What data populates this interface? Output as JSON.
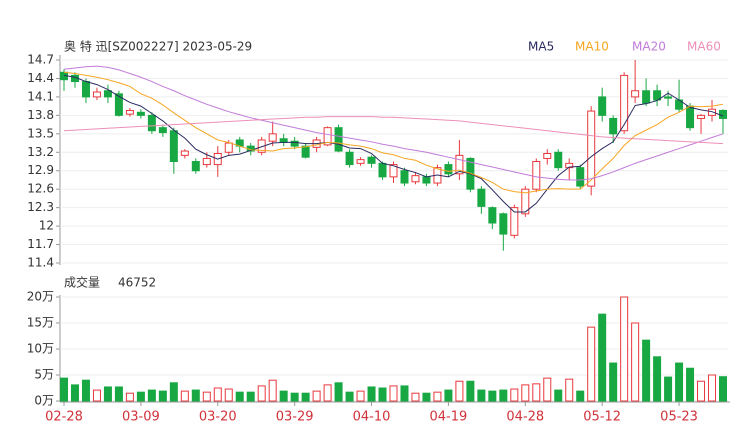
{
  "chart_data": [
    {
      "type": "candlestick",
      "title": "奥 特 迅[SZ002227] 2023-05-29",
      "up_color": "#e8383d",
      "down_color": "#18a843",
      "open": [
        14.5,
        14.45,
        14.35,
        14.1,
        14.2,
        14.15,
        13.82,
        13.85,
        13.8,
        13.6,
        13.55,
        13.15,
        13.05,
        13.0,
        13.0,
        13.2,
        13.4,
        13.3,
        13.2,
        13.38,
        13.42,
        13.38,
        13.3,
        13.28,
        13.32,
        13.6,
        13.2,
        13.02,
        13.12,
        13.02,
        12.8,
        12.9,
        12.72,
        12.8,
        12.7,
        13.0,
        12.85,
        13.1,
        12.6,
        12.3,
        12.2,
        11.85,
        12.2,
        12.6,
        13.1,
        13.2,
        12.95,
        12.95,
        12.65,
        14.1,
        13.75,
        13.55,
        14.1,
        14.2,
        14.2,
        14.1,
        14.05,
        13.95,
        13.75,
        13.8,
        13.88
      ],
      "high": [
        14.55,
        14.5,
        14.4,
        14.25,
        14.3,
        14.2,
        13.92,
        13.9,
        13.85,
        13.65,
        13.6,
        13.25,
        13.1,
        13.2,
        13.3,
        13.4,
        13.45,
        13.35,
        13.45,
        13.7,
        13.5,
        13.45,
        13.35,
        13.45,
        13.62,
        13.65,
        13.25,
        13.12,
        13.15,
        13.05,
        13.05,
        12.95,
        12.88,
        12.85,
        13.0,
        13.05,
        13.4,
        13.12,
        12.65,
        12.32,
        12.22,
        12.35,
        12.65,
        13.1,
        13.25,
        13.25,
        13.1,
        13.0,
        13.95,
        14.25,
        13.8,
        14.5,
        14.7,
        14.4,
        14.3,
        14.2,
        14.38,
        14.0,
        13.82,
        14.05,
        13.9
      ],
      "low": [
        14.2,
        14.25,
        14.0,
        14.05,
        14.0,
        13.78,
        13.78,
        13.75,
        13.5,
        13.45,
        12.85,
        13.1,
        12.85,
        12.95,
        12.8,
        13.15,
        13.2,
        13.15,
        13.15,
        13.3,
        13.3,
        13.25,
        13.1,
        13.2,
        13.3,
        13.2,
        12.95,
        12.98,
        12.95,
        12.75,
        12.7,
        12.65,
        12.68,
        12.65,
        12.65,
        12.8,
        12.75,
        12.55,
        12.2,
        11.95,
        11.6,
        11.8,
        12.15,
        12.55,
        13.0,
        12.9,
        12.75,
        12.6,
        12.5,
        13.7,
        13.35,
        13.5,
        14.0,
        13.95,
        13.95,
        13.95,
        13.85,
        13.55,
        13.5,
        13.7,
        13.5
      ],
      "close": [
        14.38,
        14.35,
        14.1,
        14.18,
        14.1,
        13.8,
        13.88,
        13.8,
        13.55,
        13.52,
        13.05,
        13.22,
        12.9,
        13.1,
        13.18,
        13.35,
        13.3,
        13.22,
        13.4,
        13.5,
        13.36,
        13.3,
        13.12,
        13.4,
        13.6,
        13.22,
        13.0,
        13.08,
        13.02,
        12.8,
        13.0,
        12.7,
        12.82,
        12.7,
        12.95,
        12.85,
        13.15,
        12.6,
        12.32,
        12.05,
        11.87,
        12.3,
        12.6,
        13.05,
        13.18,
        12.95,
        13.02,
        12.65,
        13.87,
        13.8,
        13.5,
        14.45,
        14.2,
        14.0,
        14.05,
        14.08,
        13.9,
        13.6,
        13.8,
        13.9,
        13.75
      ],
      "series": [
        {
          "name": "MA5",
          "color": "#2b2b62",
          "values": [
            14.45,
            14.42,
            14.35,
            14.3,
            14.22,
            14.11,
            14.01,
            13.95,
            13.83,
            13.71,
            13.56,
            13.43,
            13.25,
            13.16,
            13.09,
            13.15,
            13.17,
            13.23,
            13.29,
            13.35,
            13.36,
            13.36,
            13.34,
            13.34,
            13.36,
            13.33,
            13.27,
            13.26,
            13.18,
            13.02,
            12.98,
            12.92,
            12.87,
            12.8,
            12.83,
            12.8,
            12.89,
            12.85,
            12.77,
            12.59,
            12.4,
            12.23,
            12.23,
            12.37,
            12.6,
            12.82,
            12.96,
            12.97,
            13.13,
            13.26,
            13.37,
            13.65,
            13.96,
            13.99,
            14.04,
            14.16,
            14.05,
            13.93,
            13.89,
            13.86,
            13.79
          ]
        },
        {
          "name": "MA10",
          "color": "#f5a623",
          "values": [
            14.5,
            14.48,
            14.45,
            14.42,
            14.38,
            14.33,
            14.27,
            14.15,
            14.08,
            13.97,
            13.84,
            13.72,
            13.6,
            13.5,
            13.4,
            13.36,
            13.3,
            13.24,
            13.23,
            13.22,
            13.26,
            13.27,
            13.29,
            13.32,
            13.36,
            13.35,
            13.32,
            13.3,
            13.26,
            13.19,
            13.16,
            13.1,
            13.07,
            12.99,
            12.93,
            12.89,
            12.91,
            12.86,
            12.79,
            12.71,
            12.6,
            12.56,
            12.54,
            12.57,
            12.6,
            12.61,
            12.6,
            12.6,
            12.75,
            12.93,
            13.1,
            13.31,
            13.47,
            13.56,
            13.65,
            13.77,
            13.85,
            13.95,
            13.94,
            13.95,
            13.98
          ]
        },
        {
          "name": "MA20",
          "color": "#c27bd8",
          "values": [
            14.55,
            14.57,
            14.59,
            14.6,
            14.58,
            14.54,
            14.48,
            14.42,
            14.35,
            14.27,
            14.2,
            14.12,
            14.05,
            13.98,
            13.92,
            13.86,
            13.81,
            13.76,
            13.72,
            13.68,
            13.64,
            13.6,
            13.56,
            13.52,
            13.49,
            13.46,
            13.43,
            13.4,
            13.37,
            13.33,
            13.3,
            13.26,
            13.23,
            13.2,
            13.16,
            13.12,
            13.08,
            13.04,
            13.0,
            12.96,
            12.92,
            12.88,
            12.84,
            12.8,
            12.78,
            12.76,
            12.75,
            12.75,
            12.77,
            12.82,
            12.88,
            12.95,
            13.02,
            13.08,
            13.14,
            13.2,
            13.26,
            13.32,
            13.38,
            13.44,
            13.5
          ]
        },
        {
          "name": "MA60",
          "color": "#ee8fb8",
          "values": [
            13.55,
            13.56,
            13.57,
            13.58,
            13.59,
            13.6,
            13.61,
            13.62,
            13.63,
            13.64,
            13.65,
            13.66,
            13.67,
            13.68,
            13.69,
            13.7,
            13.71,
            13.72,
            13.73,
            13.74,
            13.75,
            13.76,
            13.77,
            13.77,
            13.78,
            13.78,
            13.78,
            13.78,
            13.78,
            13.77,
            13.77,
            13.76,
            13.75,
            13.74,
            13.73,
            13.72,
            13.71,
            13.69,
            13.67,
            13.65,
            13.63,
            13.61,
            13.59,
            13.57,
            13.55,
            13.53,
            13.51,
            13.49,
            13.47,
            13.45,
            13.44,
            13.43,
            13.42,
            13.41,
            13.4,
            13.39,
            13.38,
            13.37,
            13.36,
            13.35,
            13.34
          ]
        }
      ],
      "ylim": [
        11.4,
        14.7
      ],
      "yticks": [
        14.7,
        14.4,
        14.1,
        13.8,
        13.5,
        13.2,
        12.9,
        12.6,
        12.3,
        12,
        11.7,
        11.4
      ]
    },
    {
      "type": "bar",
      "title": "成交量",
      "latest_value": 46752,
      "categories": [
        "02-28",
        null,
        null,
        null,
        null,
        null,
        null,
        "03-09",
        null,
        null,
        null,
        null,
        null,
        null,
        "03-20",
        null,
        null,
        null,
        null,
        null,
        null,
        "03-29",
        null,
        null,
        null,
        null,
        null,
        null,
        "04-10",
        null,
        null,
        null,
        null,
        null,
        null,
        "04-19",
        null,
        null,
        null,
        null,
        null,
        null,
        "04-28",
        null,
        null,
        null,
        null,
        null,
        null,
        "05-12",
        null,
        null,
        null,
        null,
        null,
        null,
        "05-23",
        null,
        null,
        null,
        null
      ],
      "values": [
        4.4,
        3.1,
        4.0,
        2.1,
        2.7,
        2.7,
        1.5,
        1.7,
        2.1,
        1.9,
        3.5,
        1.9,
        2.1,
        1.7,
        2.5,
        2.3,
        1.7,
        1.7,
        2.9,
        4.0,
        1.9,
        1.5,
        1.5,
        1.9,
        3.1,
        3.5,
        1.7,
        1.9,
        2.7,
        2.5,
        2.9,
        2.9,
        1.5,
        1.5,
        1.7,
        2.1,
        3.8,
        3.8,
        2.1,
        1.9,
        2.1,
        2.3,
        3.1,
        3.3,
        4.4,
        2.1,
        4.2,
        1.9,
        14.2,
        16.7,
        7.3,
        20,
        15,
        11.7,
        8.5,
        4.6,
        7.3,
        6.3,
        3.8,
        5.0,
        4.6752
      ],
      "ylim": [
        0,
        20
      ],
      "yticks": [
        {
          "value": 20,
          "label": "20万"
        },
        {
          "value": 15,
          "label": "15万"
        },
        {
          "value": 10,
          "label": "10万"
        },
        {
          "value": 5,
          "label": "5万"
        },
        {
          "value": 0,
          "label": "0万"
        }
      ]
    }
  ]
}
